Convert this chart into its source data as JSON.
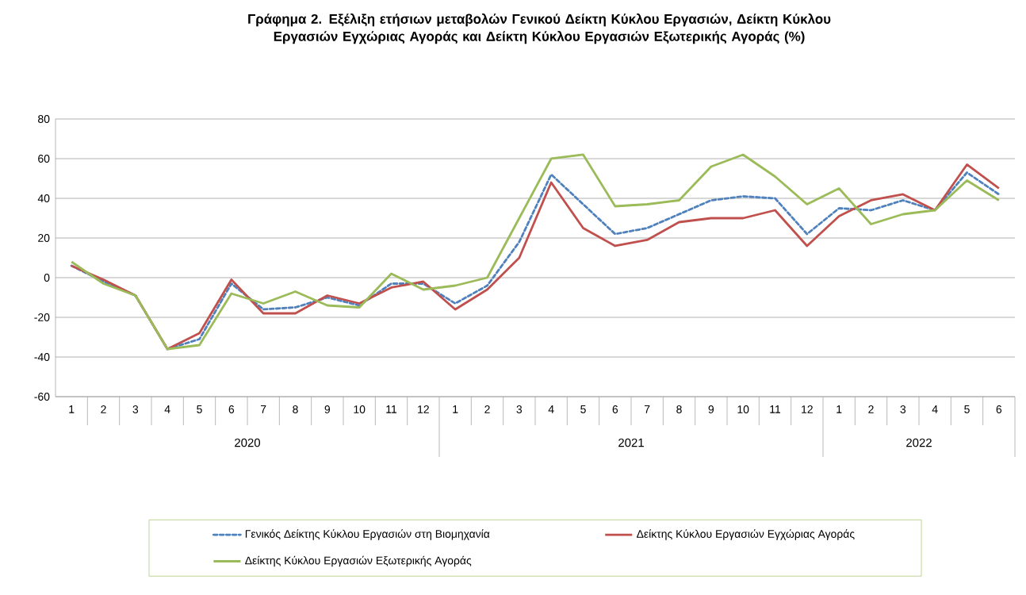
{
  "chart_data": {
    "type": "line",
    "title": "Γράφημα 2. Εξέλιξη ετήσιων μεταβολών Γενικού Δείκτη Κύκλου Εργασιών,  Δείκτη Κύκλου Εργασιών Εγχώριας Αγοράς και Δείκτη Κύκλου Εργασιών Εξωτερικής Αγοράς (%)",
    "categories": [
      "1",
      "2",
      "3",
      "4",
      "5",
      "6",
      "7",
      "8",
      "9",
      "10",
      "11",
      "12",
      "1",
      "2",
      "3",
      "4",
      "5",
      "6",
      "7",
      "8",
      "9",
      "10",
      "11",
      "12",
      "1",
      "2",
      "3",
      "4",
      "5",
      "6"
    ],
    "annotations": [
      "2020",
      "2021",
      "2022"
    ],
    "series": [
      {
        "name": "Γενικός Δείκτης Κύκλου Εργασιών στη Βιομηχανία",
        "color": "#4f81bd",
        "line_style": "dashed",
        "values": [
          6,
          -2,
          -9,
          -36,
          -31,
          -3,
          -16,
          -15,
          -10,
          -14,
          -3,
          -3,
          -13,
          -4,
          18,
          52,
          37,
          22,
          25,
          32,
          39,
          41,
          40,
          22,
          35,
          34,
          39,
          34,
          53,
          42
        ]
      },
      {
        "name": "Δείκτης Κύκλου Εργασιών Εγχώριας Αγοράς",
        "color": "#c0504d",
        "line_style": "solid",
        "values": [
          6,
          -1,
          -9,
          -36,
          -28,
          -1,
          -18,
          -18,
          -9,
          -13,
          -5,
          -2,
          -16,
          -6,
          10,
          48,
          25,
          16,
          19,
          28,
          30,
          30,
          34,
          16,
          31,
          39,
          42,
          34,
          57,
          45
        ]
      },
      {
        "name": "Δείκτης Κύκλου Εργασιών Εξωτερικής Αγοράς",
        "color": "#9bbb59",
        "line_style": "solid",
        "values": [
          8,
          -3,
          -9,
          -36,
          -34,
          -8,
          -13,
          -7,
          -14,
          -15,
          2,
          -6,
          -4,
          0,
          30,
          60,
          62,
          36,
          37,
          39,
          56,
          62,
          51,
          37,
          45,
          27,
          32,
          34,
          49,
          39
        ]
      }
    ],
    "ylim": [
      -60,
      80
    ],
    "yticks": [
      -60,
      -40,
      -20,
      0,
      20,
      40,
      60,
      80
    ],
    "grid": "y",
    "legend": "bottom"
  }
}
